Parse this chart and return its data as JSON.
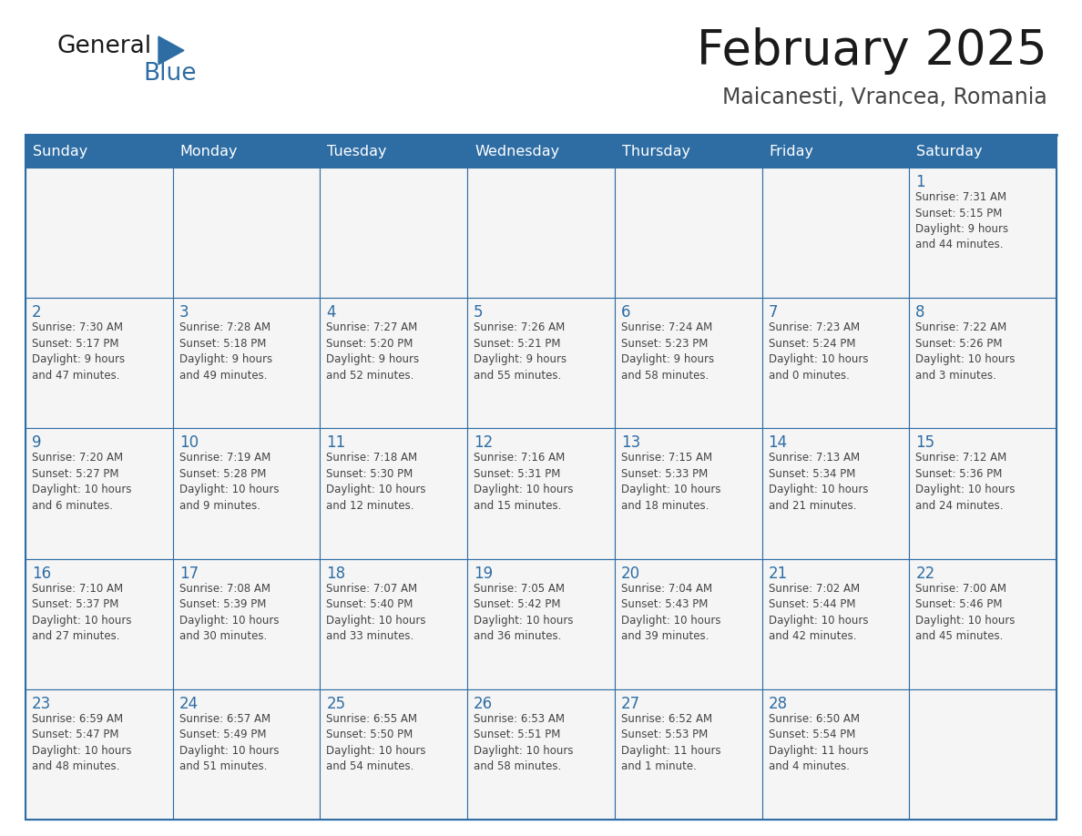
{
  "title": "February 2025",
  "subtitle": "Maicanesti, Vrancea, Romania",
  "header_bg": "#2E6DA4",
  "header_text": "#FFFFFF",
  "cell_bg": "#F5F5F5",
  "border_color": "#2E6DA4",
  "text_color": "#444444",
  "day_num_color": "#2E6DA4",
  "days_of_week": [
    "Sunday",
    "Monday",
    "Tuesday",
    "Wednesday",
    "Thursday",
    "Friday",
    "Saturday"
  ],
  "calendar_data": [
    [
      {
        "day": "",
        "info": ""
      },
      {
        "day": "",
        "info": ""
      },
      {
        "day": "",
        "info": ""
      },
      {
        "day": "",
        "info": ""
      },
      {
        "day": "",
        "info": ""
      },
      {
        "day": "",
        "info": ""
      },
      {
        "day": "1",
        "info": "Sunrise: 7:31 AM\nSunset: 5:15 PM\nDaylight: 9 hours\nand 44 minutes."
      }
    ],
    [
      {
        "day": "2",
        "info": "Sunrise: 7:30 AM\nSunset: 5:17 PM\nDaylight: 9 hours\nand 47 minutes."
      },
      {
        "day": "3",
        "info": "Sunrise: 7:28 AM\nSunset: 5:18 PM\nDaylight: 9 hours\nand 49 minutes."
      },
      {
        "day": "4",
        "info": "Sunrise: 7:27 AM\nSunset: 5:20 PM\nDaylight: 9 hours\nand 52 minutes."
      },
      {
        "day": "5",
        "info": "Sunrise: 7:26 AM\nSunset: 5:21 PM\nDaylight: 9 hours\nand 55 minutes."
      },
      {
        "day": "6",
        "info": "Sunrise: 7:24 AM\nSunset: 5:23 PM\nDaylight: 9 hours\nand 58 minutes."
      },
      {
        "day": "7",
        "info": "Sunrise: 7:23 AM\nSunset: 5:24 PM\nDaylight: 10 hours\nand 0 minutes."
      },
      {
        "day": "8",
        "info": "Sunrise: 7:22 AM\nSunset: 5:26 PM\nDaylight: 10 hours\nand 3 minutes."
      }
    ],
    [
      {
        "day": "9",
        "info": "Sunrise: 7:20 AM\nSunset: 5:27 PM\nDaylight: 10 hours\nand 6 minutes."
      },
      {
        "day": "10",
        "info": "Sunrise: 7:19 AM\nSunset: 5:28 PM\nDaylight: 10 hours\nand 9 minutes."
      },
      {
        "day": "11",
        "info": "Sunrise: 7:18 AM\nSunset: 5:30 PM\nDaylight: 10 hours\nand 12 minutes."
      },
      {
        "day": "12",
        "info": "Sunrise: 7:16 AM\nSunset: 5:31 PM\nDaylight: 10 hours\nand 15 minutes."
      },
      {
        "day": "13",
        "info": "Sunrise: 7:15 AM\nSunset: 5:33 PM\nDaylight: 10 hours\nand 18 minutes."
      },
      {
        "day": "14",
        "info": "Sunrise: 7:13 AM\nSunset: 5:34 PM\nDaylight: 10 hours\nand 21 minutes."
      },
      {
        "day": "15",
        "info": "Sunrise: 7:12 AM\nSunset: 5:36 PM\nDaylight: 10 hours\nand 24 minutes."
      }
    ],
    [
      {
        "day": "16",
        "info": "Sunrise: 7:10 AM\nSunset: 5:37 PM\nDaylight: 10 hours\nand 27 minutes."
      },
      {
        "day": "17",
        "info": "Sunrise: 7:08 AM\nSunset: 5:39 PM\nDaylight: 10 hours\nand 30 minutes."
      },
      {
        "day": "18",
        "info": "Sunrise: 7:07 AM\nSunset: 5:40 PM\nDaylight: 10 hours\nand 33 minutes."
      },
      {
        "day": "19",
        "info": "Sunrise: 7:05 AM\nSunset: 5:42 PM\nDaylight: 10 hours\nand 36 minutes."
      },
      {
        "day": "20",
        "info": "Sunrise: 7:04 AM\nSunset: 5:43 PM\nDaylight: 10 hours\nand 39 minutes."
      },
      {
        "day": "21",
        "info": "Sunrise: 7:02 AM\nSunset: 5:44 PM\nDaylight: 10 hours\nand 42 minutes."
      },
      {
        "day": "22",
        "info": "Sunrise: 7:00 AM\nSunset: 5:46 PM\nDaylight: 10 hours\nand 45 minutes."
      }
    ],
    [
      {
        "day": "23",
        "info": "Sunrise: 6:59 AM\nSunset: 5:47 PM\nDaylight: 10 hours\nand 48 minutes."
      },
      {
        "day": "24",
        "info": "Sunrise: 6:57 AM\nSunset: 5:49 PM\nDaylight: 10 hours\nand 51 minutes."
      },
      {
        "day": "25",
        "info": "Sunrise: 6:55 AM\nSunset: 5:50 PM\nDaylight: 10 hours\nand 54 minutes."
      },
      {
        "day": "26",
        "info": "Sunrise: 6:53 AM\nSunset: 5:51 PM\nDaylight: 10 hours\nand 58 minutes."
      },
      {
        "day": "27",
        "info": "Sunrise: 6:52 AM\nSunset: 5:53 PM\nDaylight: 11 hours\nand 1 minute."
      },
      {
        "day": "28",
        "info": "Sunrise: 6:50 AM\nSunset: 5:54 PM\nDaylight: 11 hours\nand 4 minutes."
      },
      {
        "day": "",
        "info": ""
      }
    ]
  ]
}
